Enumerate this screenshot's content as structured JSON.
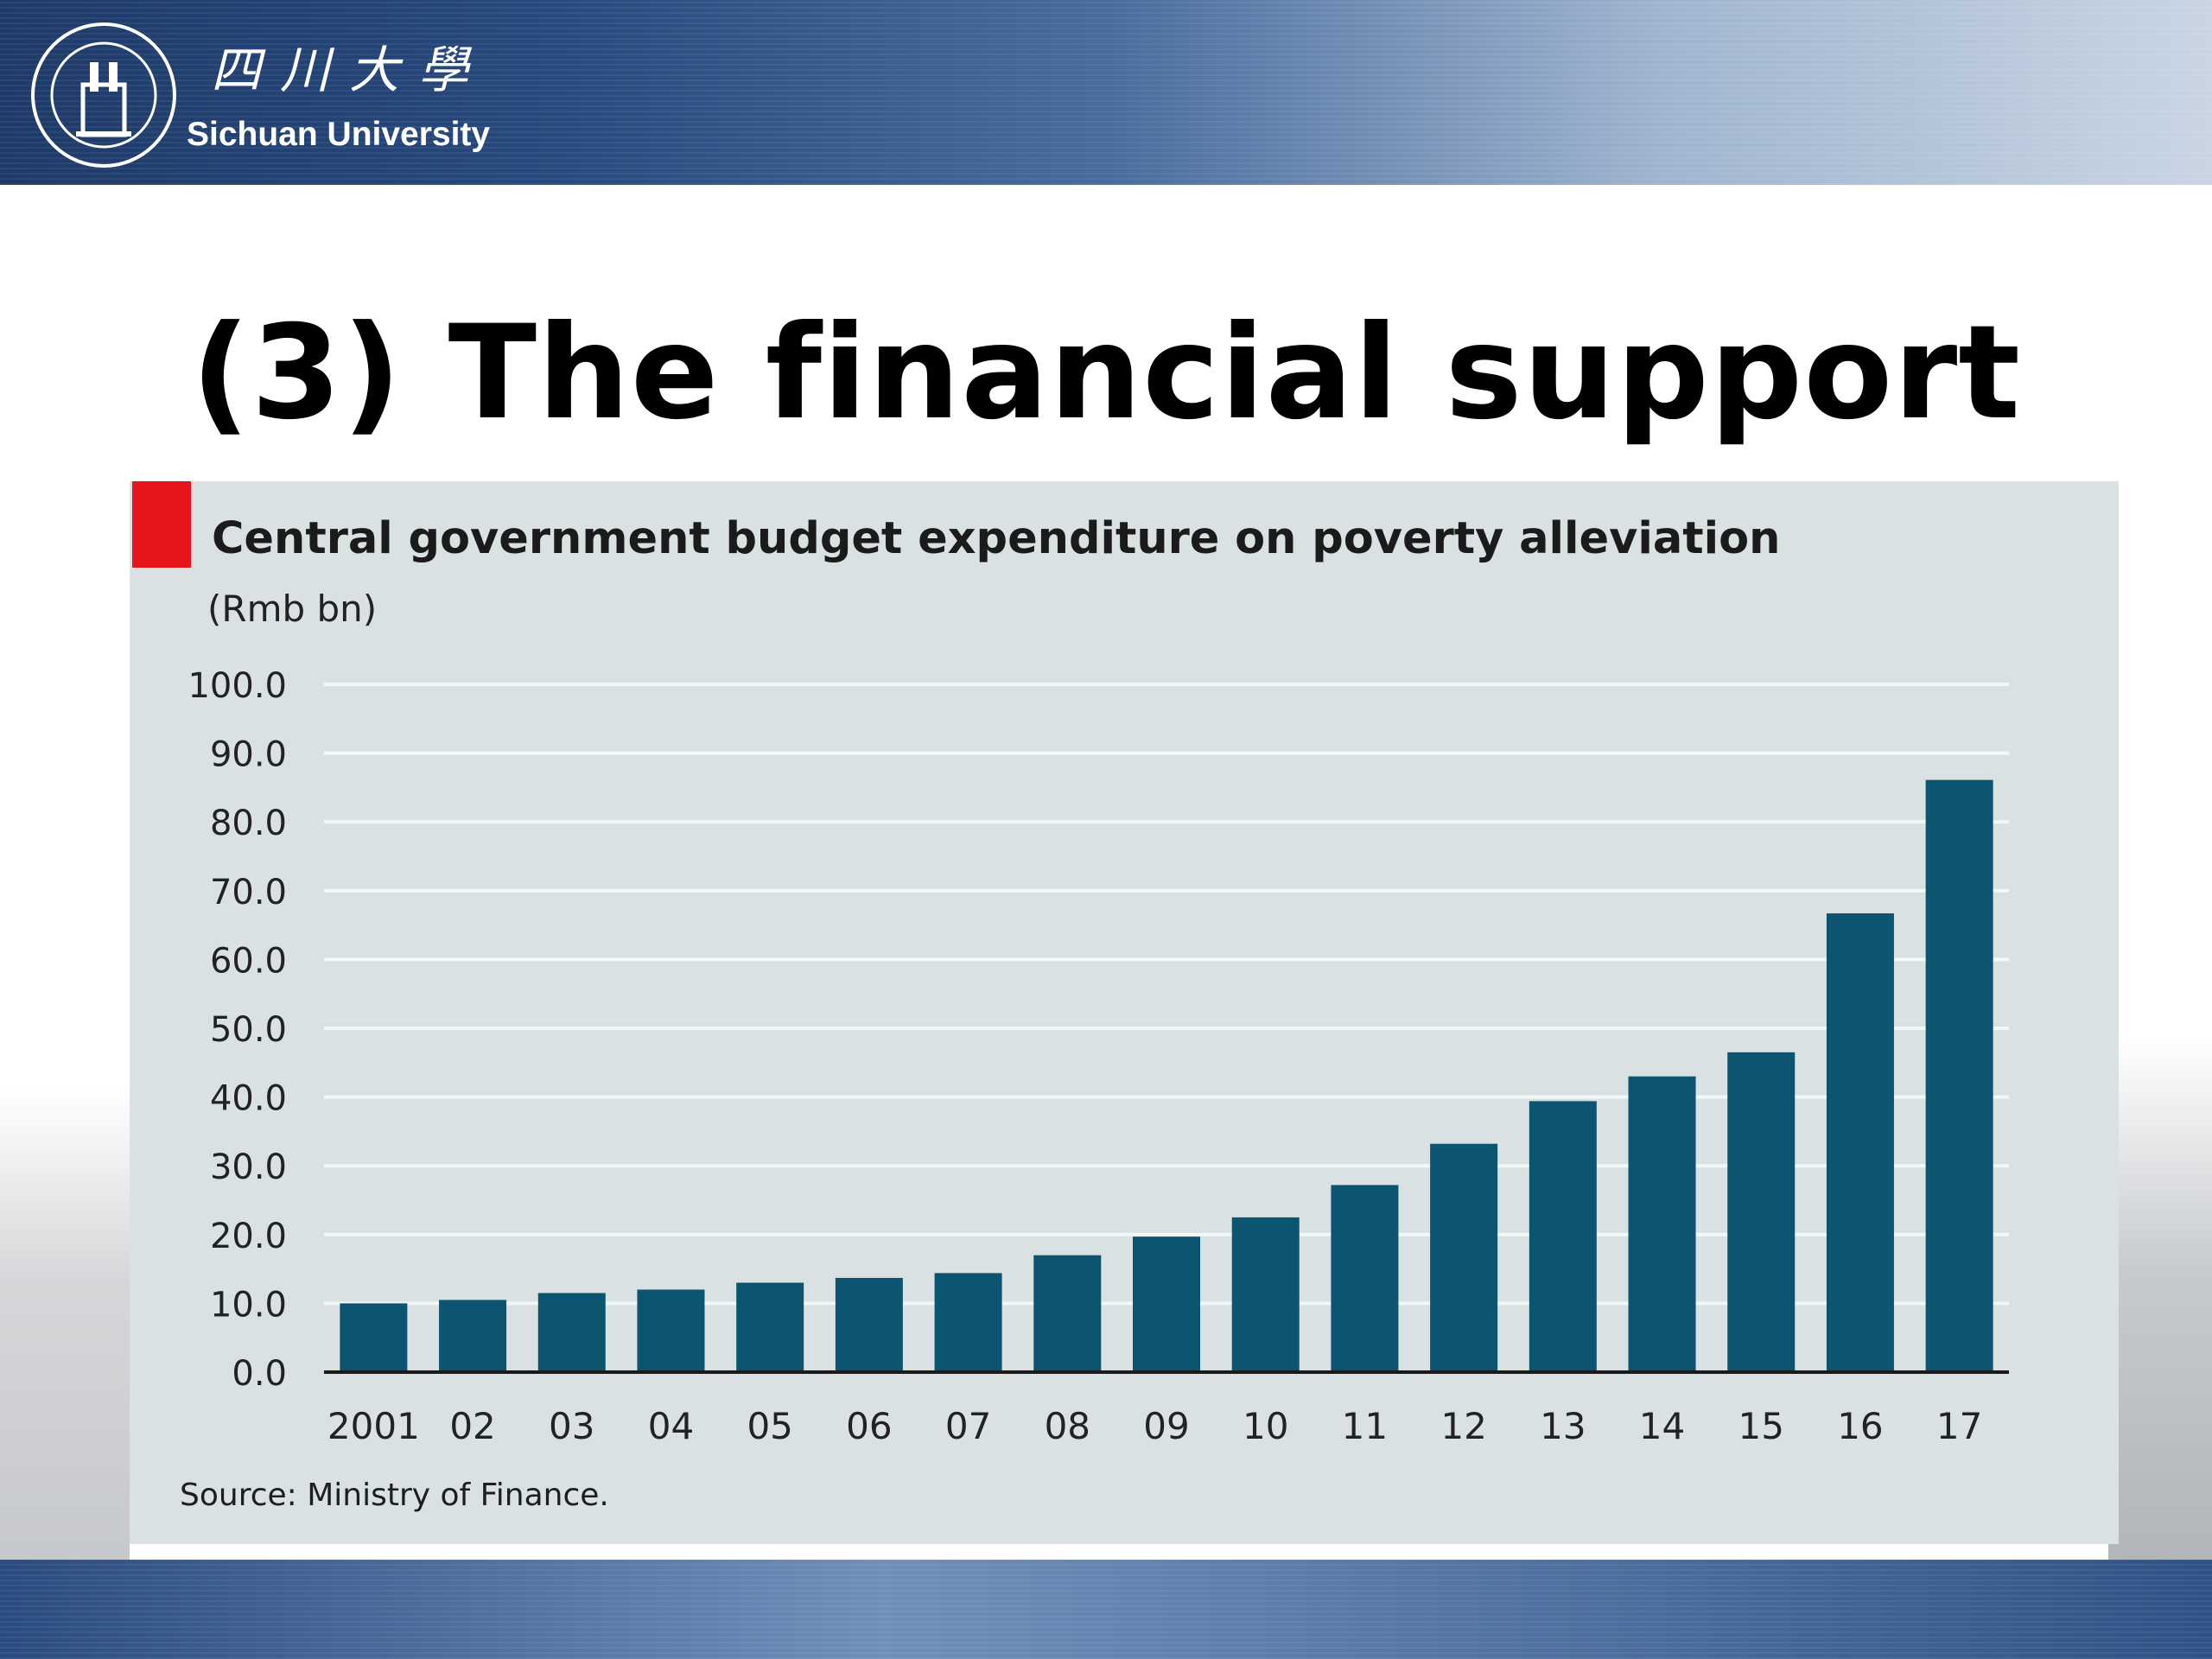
{
  "header": {
    "university_cn": "四川大學",
    "university_en": "Sichuan University"
  },
  "slide": {
    "title": "(3) The financial support"
  },
  "chart_data": {
    "type": "bar",
    "title": "Central government budget expenditure on poverty alleviation",
    "unit": "(Rmb bn)",
    "source": "Source: Ministry of Finance.",
    "categories": [
      "2001",
      "02",
      "03",
      "04",
      "05",
      "06",
      "07",
      "08",
      "09",
      "10",
      "11",
      "12",
      "13",
      "14",
      "15",
      "16",
      "17"
    ],
    "values": [
      10.0,
      10.5,
      11.5,
      12.0,
      13.0,
      13.7,
      14.4,
      17.0,
      19.7,
      22.5,
      27.2,
      33.2,
      39.4,
      43.0,
      46.5,
      66.7,
      86.1
    ],
    "ylim": [
      0,
      100
    ],
    "yticks": [
      "0.0",
      "10.0",
      "20.0",
      "30.0",
      "40.0",
      "50.0",
      "60.0",
      "70.0",
      "80.0",
      "90.0",
      "100.0"
    ],
    "grid": true,
    "legend": "none",
    "colors": {
      "bar": "#0c5570",
      "grid": "#f4f7f7",
      "axis": "#1a1a1a",
      "marker": "#e8141d"
    }
  }
}
